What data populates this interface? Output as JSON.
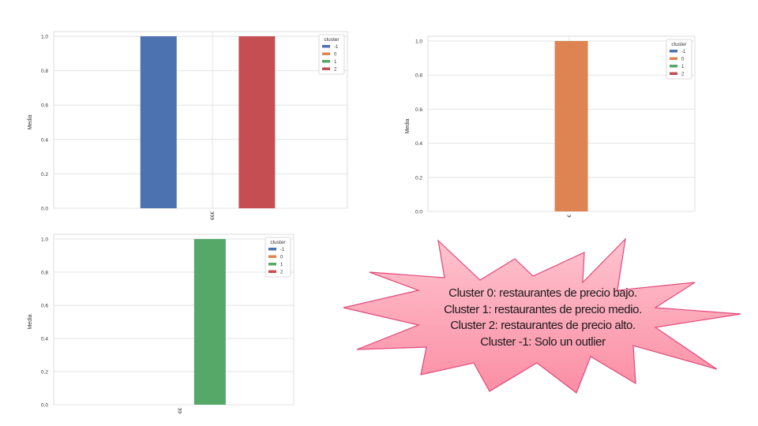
{
  "chart_data": [
    {
      "type": "bar",
      "categories": [
        "€€€"
      ],
      "ylabel": "Media",
      "xlabel": "",
      "ylim": [
        0,
        1.0
      ],
      "yticks": [
        "0.0",
        "0.2",
        "0.4",
        "0.6",
        "0.8",
        "1.0"
      ],
      "grid": true,
      "legend_title": "cluster",
      "legend_placement": "top-right",
      "legend": [
        {
          "label": "-1",
          "color": "#4c72b0"
        },
        {
          "label": "0",
          "color": "#dd8452"
        },
        {
          "label": "1",
          "color": "#55a868"
        },
        {
          "label": "2",
          "color": "#c44e52"
        }
      ],
      "series": [
        {
          "cluster": "-1",
          "color": "#4c72b0",
          "values": [
            1.0
          ]
        },
        {
          "cluster": "2",
          "color": "#c44e52",
          "values": [
            1.0
          ]
        }
      ]
    },
    {
      "type": "bar",
      "categories": [
        "€"
      ],
      "ylabel": "Media",
      "xlabel": "",
      "ylim": [
        0,
        1.0
      ],
      "yticks": [
        "0.0",
        "0.2",
        "0.4",
        "0.6",
        "0.8",
        "1.0"
      ],
      "grid": true,
      "legend_title": "cluster",
      "legend_placement": "top-right",
      "legend": [
        {
          "label": "-1",
          "color": "#4c72b0"
        },
        {
          "label": "0",
          "color": "#dd8452"
        },
        {
          "label": "1",
          "color": "#55a868"
        },
        {
          "label": "2",
          "color": "#c44e52"
        }
      ],
      "series": [
        {
          "cluster": "0",
          "color": "#dd8452",
          "values": [
            1.0
          ]
        }
      ]
    },
    {
      "type": "bar",
      "categories": [
        "€€"
      ],
      "ylabel": "Media",
      "xlabel": "",
      "ylim": [
        0,
        1.0
      ],
      "yticks": [
        "0.0",
        "0.2",
        "0.4",
        "0.6",
        "0.8",
        "1.0"
      ],
      "grid": true,
      "legend_title": "cluster",
      "legend_placement": "top-right",
      "legend": [
        {
          "label": "-1",
          "color": "#4c72b0"
        },
        {
          "label": "0",
          "color": "#dd8452"
        },
        {
          "label": "1",
          "color": "#55a868"
        },
        {
          "label": "2",
          "color": "#c44e52"
        }
      ],
      "series": [
        {
          "cluster": "1",
          "color": "#55a868",
          "values": [
            1.0
          ]
        }
      ]
    }
  ],
  "callout": {
    "lines": [
      "Cluster 0: restaurantes de precio bajo.",
      "Cluster 1: restaurantes de precio medio.",
      "Cluster 2: restaurantes de precio alto.",
      "Cluster -1: Solo un outlier"
    ],
    "fill": "#fda9b9",
    "stroke": "#e0497a"
  }
}
